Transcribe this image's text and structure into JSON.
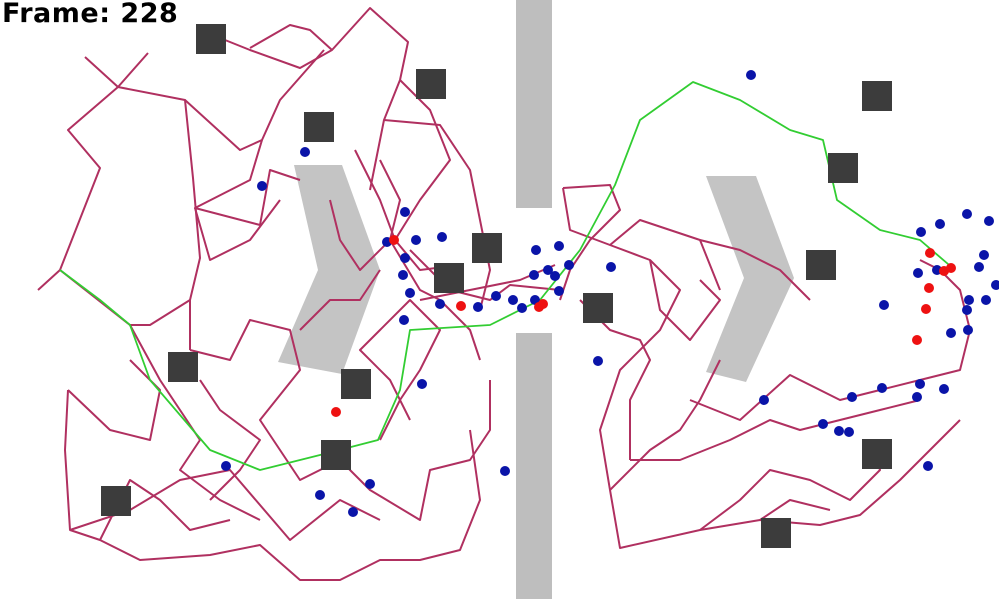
{
  "hud": {
    "frame_prefix": "Frame:",
    "frame_number": "228"
  },
  "colors": {
    "background": "#ffffff",
    "wall": "#bebebe",
    "arrow": "#c4c4c4",
    "obstacle": "#3c3c3c",
    "network": "#b03060",
    "path": "#32cd32",
    "agent_blue": "#0a14a8",
    "agent_red": "#ee1111"
  },
  "icons": {
    "direction_arrow": "chevron-right-icon",
    "obstacle": "square-obstacle",
    "agent": "dot"
  }
}
